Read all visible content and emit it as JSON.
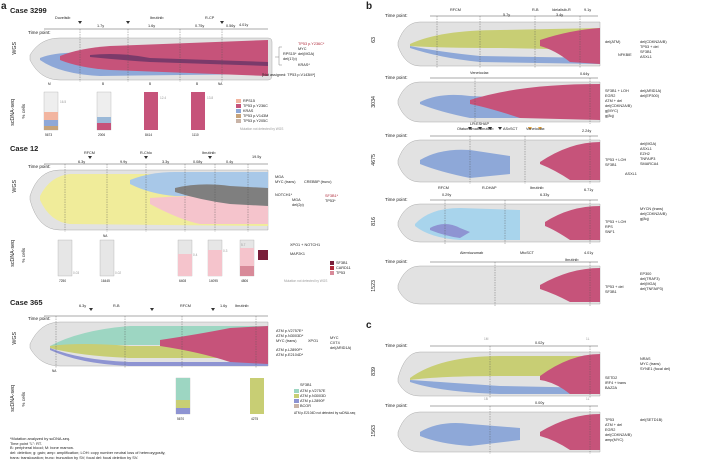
{
  "panel_labels": {
    "a": "a",
    "b": "b",
    "c": "c"
  },
  "labels": {
    "timepoint": "Time point:",
    "wgs": "WGS",
    "scdna": "scDNA-seq",
    "pct": "% cells"
  },
  "case3299": {
    "title": "Case 3299",
    "treat": [
      "Duvelisib",
      "Ibrutinib",
      "R-CP",
      "",
      "4.01y"
    ],
    "durations": [
      "1.7y",
      "1.6y",
      "0.75y",
      "0.56y"
    ],
    "events": [
      "Duvelisib",
      "Ibrutinib",
      "R-CP"
    ],
    "tp_axis": [
      "M",
      "B",
      "B",
      "B",
      "NA"
    ],
    "annot": [
      "RPS15*",
      "del(17p)",
      "TP53 p.Y236C*",
      "MYC",
      "del(MGA)",
      "KRAS*"
    ],
    "not_assigned": "[Not assigned: TP53 p.V143M*]",
    "samples": [
      "5673",
      "2006",
      "8414",
      "1110"
    ],
    "pcts": [
      "16.5",
      "12.4",
      "13.8"
    ],
    "legend": [
      "RPS15",
      "TP53 p.Y236C",
      "KRAS",
      "TP53 p.V143M",
      "TP53 p.Y205C"
    ],
    "note": "Mutation not detected by WGS"
  },
  "case12": {
    "title": "Case 12",
    "durations": [
      "6.3y",
      "9.9y",
      "3.3y",
      "0.08y",
      "0.4y",
      "19.5y"
    ],
    "events": [
      "RFCM",
      "R-Chlo",
      "Ibrutinib"
    ],
    "clones": [
      "MGA",
      "MYC (trans)",
      "NOTCH1*",
      "MGA",
      "del(2p)",
      "SF3B1*",
      "TP53*"
    ],
    "annot": [
      "CREBBP (trunc)",
      "XPO1 + NOTCH1",
      "MAP2K1",
      "SF3B1",
      "CARD11",
      "TP53"
    ],
    "samples": [
      "7250",
      "16445",
      "6408",
      "14095",
      "4806"
    ],
    "pcts": [
      "0.03",
      "0.02",
      "0.4",
      "0.3",
      "5.7"
    ],
    "note": "Mutation not detected by WGS",
    "na": "NA"
  },
  "case365": {
    "title": "Case 365",
    "durations": [
      "6.3y",
      "1.6y"
    ],
    "events": [
      "R-B",
      "RFCM",
      "Ibrutinib"
    ],
    "annot": [
      "ATM p.V2757E*",
      "ATM p.N3003D*",
      "MYC (trans)",
      "ATM p.L2890F*",
      "ATM p.E2104D*",
      "XPO1"
    ],
    "extra": [
      "MYC",
      "CXT4",
      "del(ARID1A)"
    ],
    "samples": [
      "5670",
      "4275"
    ],
    "legend": [
      "SF3B1",
      "ATM p.V2757E",
      "ATM p.N3003D",
      "ATM p.L2890F",
      "BCOR"
    ],
    "note": "ATM p.E2104D not detected by scDNA-seq",
    "na": "NA"
  },
  "footnote": [
    "*Mutation analyzed by scDNA-seq.",
    "Time point \"L\": RT.",
    "B: peripheral blood; M: bone marrow.",
    "del: deletion; g: gain; amp: amplification; LOH: copy number neutral loss of heterozygosity,",
    "trans: translocation; trunc: truncation by SV; focal del: focal deletion by SV."
  ],
  "b_cases": [
    {
      "id": "63",
      "events": [
        "RFCM",
        "R-B",
        "Idelalisib-R"
      ],
      "durations": [
        "5.7y",
        "3.4y",
        "9.1y"
      ],
      "annot": [
        "del(ATM)",
        "NFKBIE",
        "del(CDKN2A/B)",
        "TP53 + del",
        "SF3B1",
        "ASXL1"
      ]
    },
    {
      "id": "3034",
      "events": [
        "Venetoclax"
      ],
      "durations": [
        "0.64y"
      ],
      "annot": [
        "SF3B1 + LOH",
        "EGR2",
        "ATM + del",
        "del(CDKN2A/B)",
        "g(MYC)",
        "g(8q)",
        "del(ARID1A)",
        "del(EP300)"
      ]
    },
    {
      "id": "4675",
      "events": [
        "LR-ESHAP",
        "Ofatumumab",
        "Ibrutinib",
        "ASxSCT",
        "Venetoclax"
      ],
      "durations": [
        "2.24y"
      ],
      "annot": [
        "del(MGA)",
        "ASXL1",
        "EZH2",
        "TNFAIP3",
        "SMARCA4",
        "TP53 + LOH",
        "SF3B1",
        "ASXL1"
      ]
    },
    {
      "id": "816",
      "events": [
        "RFCM",
        "R-DHAP",
        "Ibrutinib"
      ],
      "durations": [
        "0.29y",
        "6.33y",
        "6.71y"
      ],
      "annot": [
        "MYCN (trans)",
        "del(CDKN2A/B)",
        "g(8q)",
        "TP53 + LOH",
        "RPS",
        "SNF1"
      ]
    },
    {
      "id": "1523",
      "events": [
        "Alemtuzumab",
        "MtoSCT",
        "Ibrutinib"
      ],
      "durations": [
        "4.01y"
      ],
      "annot": [
        "EP300",
        "del(TRAF3)",
        "del(MGA)",
        "del(TNFAIP3)",
        "TP53 + del",
        "SF3B1"
      ]
    }
  ],
  "c_cases": [
    {
      "id": "839",
      "tp": [
        "1M",
        "1L"
      ],
      "durations": [
        "0.02y"
      ],
      "annot": [
        "NRAS",
        "MYC (trans)",
        "SYNE1 (focal del)",
        "SETD2",
        "IRF4 + trans",
        "BAZ2A"
      ]
    },
    {
      "id": "1563",
      "tp": [
        "1B",
        "1L"
      ],
      "durations": [
        "0.00y"
      ],
      "annot": [
        "TP53",
        "ATM + del",
        "EGR2",
        "del(CDKN2A/B)",
        "amp(MYC)",
        "del(SETD1B)"
      ]
    }
  ]
}
